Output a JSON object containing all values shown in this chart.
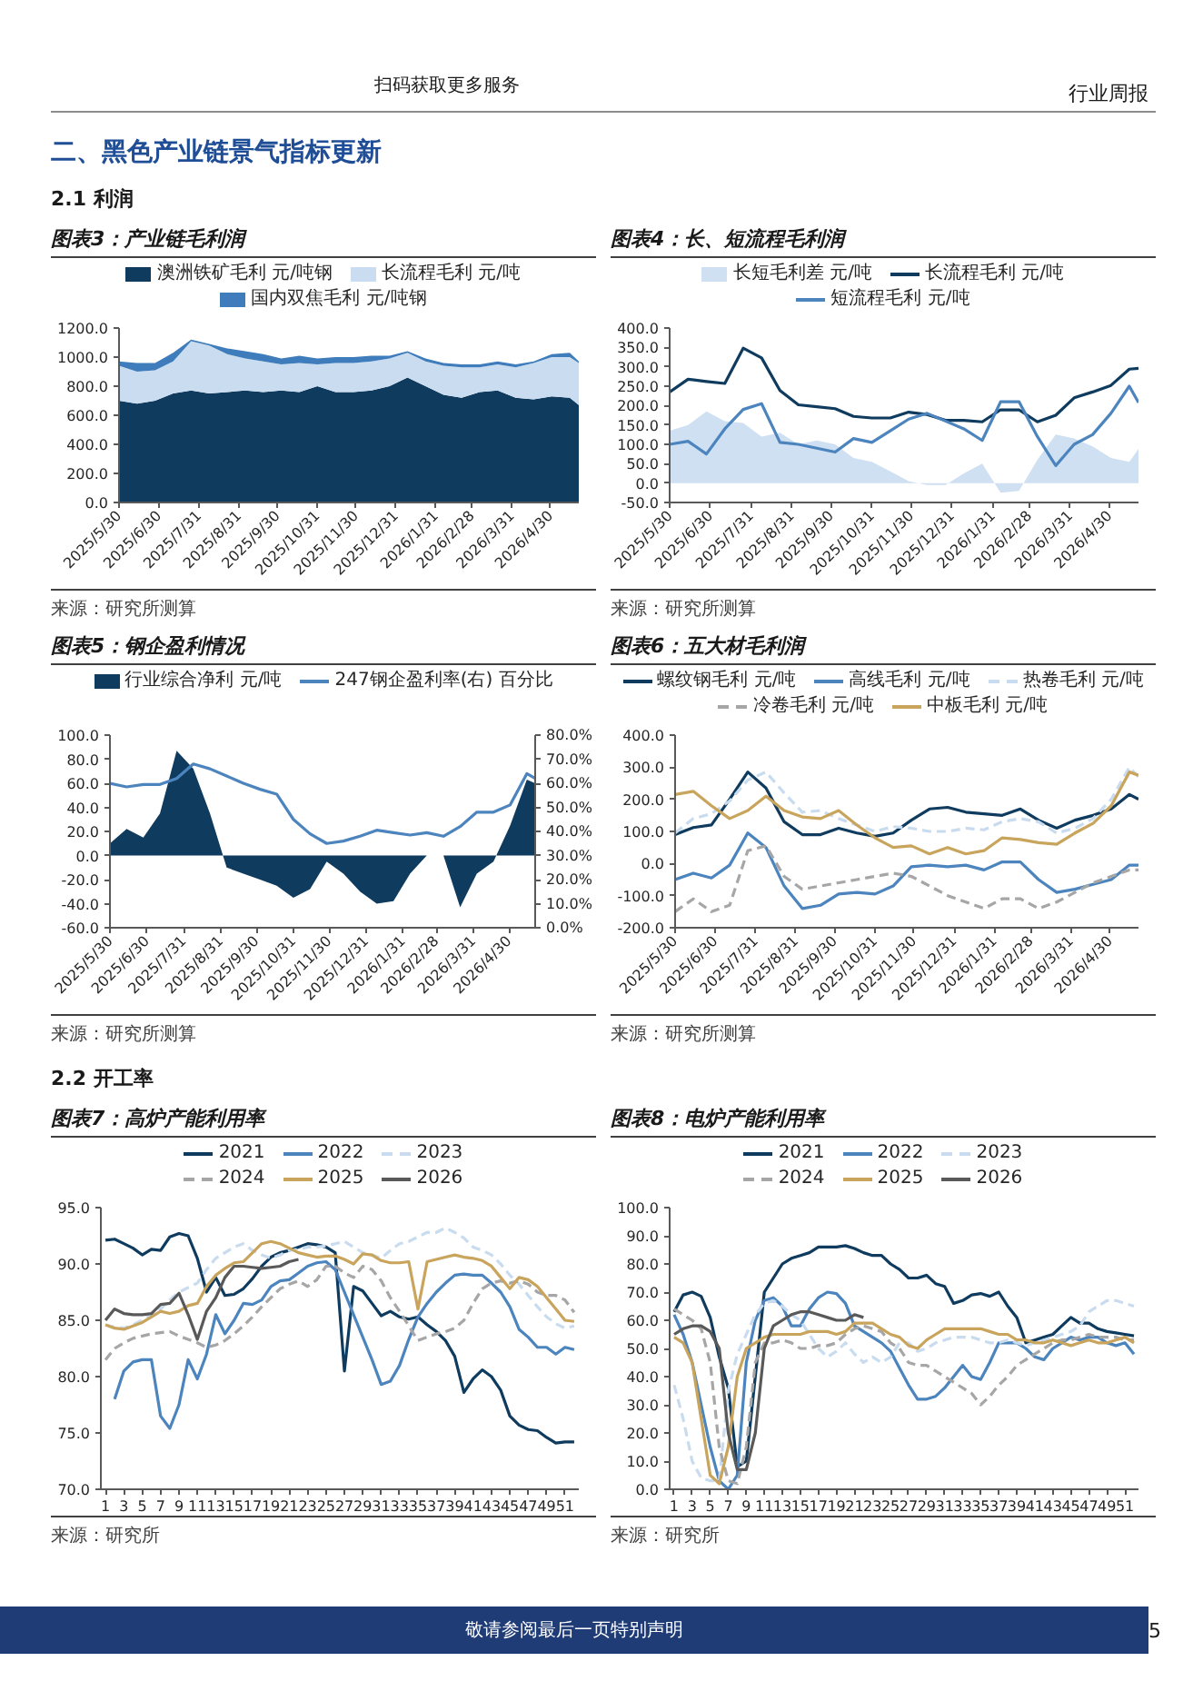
{
  "chart_data": [
    {
      "type": "area",
      "stacked": true,
      "title": "图表3：产业链毛利润",
      "annotations": [
        "来源：研究所测算",
        "扫码获取更多服务",
        "行业周报",
        "二、黑色产业链景气指标更新",
        "2.1 利润"
      ],
      "x": [
        "2025-05-30",
        "2025-06-13",
        "2025-06-27",
        "2025-07-11",
        "2025-07-25",
        "2025-08-08",
        "2025-08-22",
        "2025-09-05",
        "2025-09-19",
        "2025-10-03",
        "2025-10-17",
        "2025-10-31",
        "2025-11-14",
        "2025-11-28",
        "2025-12-12",
        "2025-12-26",
        "2026-01-09",
        "2026-01-23",
        "2026-02-06",
        "2026-02-20",
        "2026-03-06",
        "2026-03-20",
        "2026-04-03",
        "2026-04-17",
        "2026-05-01",
        "2026-05-15",
        "2026-05-22"
      ],
      "xlim": [
        "2025-05-30",
        "2026-05-22"
      ],
      "xticks": [
        {
          "value": "2025-05-30",
          "label": "2025/5/30"
        },
        {
          "value": "2025-06-30",
          "label": "2025/6/30"
        },
        {
          "value": "2025-07-31",
          "label": "2025/7/31"
        },
        {
          "value": "2025-08-31",
          "label": "2025/8/31"
        },
        {
          "value": "2025-09-30",
          "label": "2025/9/30"
        },
        {
          "value": "2025-10-31",
          "label": "2025/10/31"
        },
        {
          "value": "2025-11-30",
          "label": "2025/11/30"
        },
        {
          "value": "2025-12-31",
          "label": "2025/12/31"
        },
        {
          "value": "2026-01-31",
          "label": "2026/1/31"
        },
        {
          "value": "2026-02-28",
          "label": "2026/2/28"
        },
        {
          "value": "2026-03-31",
          "label": "2026/3/31"
        },
        {
          "value": "2026-04-30",
          "label": "2026/4/30"
        }
      ],
      "ylim": [
        0,
        1200
      ],
      "yticks": [
        {
          "value": 0,
          "label": "0.0"
        },
        {
          "value": 200,
          "label": "200.0"
        },
        {
          "value": 400,
          "label": "400.0"
        },
        {
          "value": 600,
          "label": "600.0"
        },
        {
          "value": 800,
          "label": "800.0"
        },
        {
          "value": 1000,
          "label": "1000.0"
        },
        {
          "value": 1200,
          "label": "1200.0"
        }
      ],
      "legend": "top",
      "series": [
        {
          "name": "澳洲铁矿毛利 元/吨钢",
          "color": "#0f3b5f",
          "values": [
            700,
            680,
            700,
            750,
            770,
            750,
            760,
            770,
            760,
            770,
            760,
            800,
            760,
            760,
            770,
            800,
            860,
            800,
            740,
            720,
            760,
            770,
            720,
            710,
            730,
            720,
            670
          ]
        },
        {
          "name": "长流程毛利 元/吨",
          "color": "#cadcef",
          "values": [
            240,
            220,
            210,
            220,
            340,
            330,
            260,
            220,
            210,
            180,
            200,
            150,
            200,
            200,
            200,
            190,
            170,
            170,
            200,
            210,
            170,
            180,
            210,
            250,
            270,
            280,
            290
          ]
        },
        {
          "name": "国内双焦毛利 元/吨钢",
          "color": "#3f7cbb",
          "values": [
            30,
            60,
            50,
            60,
            10,
            10,
            40,
            50,
            50,
            40,
            50,
            40,
            40,
            40,
            40,
            20,
            10,
            20,
            20,
            20,
            20,
            20,
            20,
            10,
            20,
            30,
            10
          ]
        }
      ]
    },
    {
      "type": "line",
      "title": "图表4：长、短流程毛利润",
      "annotations": [
        "来源：研究所测算"
      ],
      "x": [
        "2025-05-30",
        "2025-06-13",
        "2025-06-27",
        "2025-07-11",
        "2025-07-25",
        "2025-08-08",
        "2025-08-22",
        "2025-09-05",
        "2025-09-19",
        "2025-10-03",
        "2025-10-17",
        "2025-10-31",
        "2025-11-14",
        "2025-11-28",
        "2025-12-12",
        "2025-12-26",
        "2026-01-09",
        "2026-01-23",
        "2026-02-06",
        "2026-02-20",
        "2026-03-06",
        "2026-03-20",
        "2026-04-03",
        "2026-04-17",
        "2026-05-01",
        "2026-05-15",
        "2026-05-22"
      ],
      "xlim": [
        "2025-05-30",
        "2026-05-22"
      ],
      "xticks": [
        {
          "value": "2025-05-30",
          "label": "2025/5/30"
        },
        {
          "value": "2025-06-30",
          "label": "2025/6/30"
        },
        {
          "value": "2025-07-31",
          "label": "2025/7/31"
        },
        {
          "value": "2025-08-31",
          "label": "2025/8/31"
        },
        {
          "value": "2025-09-30",
          "label": "2025/9/30"
        },
        {
          "value": "2025-10-31",
          "label": "2025/10/31"
        },
        {
          "value": "2025-11-30",
          "label": "2025/11/30"
        },
        {
          "value": "2025-12-31",
          "label": "2025/12/31"
        },
        {
          "value": "2026-01-31",
          "label": "2026/1/31"
        },
        {
          "value": "2026-02-28",
          "label": "2026/2/28"
        },
        {
          "value": "2026-03-31",
          "label": "2026/3/31"
        },
        {
          "value": "2026-04-30",
          "label": "2026/4/30"
        }
      ],
      "ylim": [
        -50,
        400
      ],
      "yticks": [
        {
          "value": -50,
          "label": "-50.0"
        },
        {
          "value": 0,
          "label": "0.0"
        },
        {
          "value": 50,
          "label": "50.0"
        },
        {
          "value": 100,
          "label": "100.0"
        },
        {
          "value": 150,
          "label": "150.0"
        },
        {
          "value": 200,
          "label": "200.0"
        },
        {
          "value": 250,
          "label": "250.0"
        },
        {
          "value": 300,
          "label": "300.0"
        },
        {
          "value": 350,
          "label": "350.0"
        },
        {
          "value": 400,
          "label": "400.0"
        }
      ],
      "legend": "top",
      "series": [
        {
          "name": "长短毛利差 元/吨",
          "type": "area",
          "color": "#cfe0f2",
          "values": [
            135,
            150,
            185,
            160,
            155,
            120,
            130,
            100,
            110,
            100,
            65,
            55,
            30,
            5,
            -5,
            -5,
            25,
            50,
            -25,
            -20,
            60,
            125,
            115,
            95,
            65,
            55,
            88
          ]
        },
        {
          "name": "长流程毛利 元/吨",
          "color": "#0f3b5f",
          "values": [
            235,
            268,
            262,
            257,
            348,
            323,
            239,
            202,
            197,
            192,
            172,
            168,
            168,
            183,
            177,
            162,
            162,
            158,
            189,
            189,
            158,
            175,
            220,
            235,
            252,
            294,
            296
          ]
        },
        {
          "name": "短流程毛利 元/吨",
          "color": "#4c84be",
          "values": [
            100,
            108,
            75,
            140,
            190,
            205,
            105,
            100,
            90,
            80,
            115,
            105,
            135,
            165,
            180,
            160,
            140,
            110,
            210,
            210,
            120,
            45,
            100,
            125,
            180,
            250,
            208
          ]
        }
      ]
    },
    {
      "type": "area",
      "title": "图表5：钢企盈利情况",
      "annotations": [
        "来源：研究所测算"
      ],
      "x": [
        "2025-05-30",
        "2025-06-13",
        "2025-06-27",
        "2025-07-11",
        "2025-07-25",
        "2025-08-08",
        "2025-08-22",
        "2025-09-05",
        "2025-09-19",
        "2025-10-03",
        "2025-10-17",
        "2025-10-31",
        "2025-11-14",
        "2025-11-28",
        "2025-12-12",
        "2025-12-26",
        "2026-01-09",
        "2026-01-23",
        "2026-02-06",
        "2026-02-20",
        "2026-03-06",
        "2026-03-20",
        "2026-04-03",
        "2026-04-17",
        "2026-05-01",
        "2026-05-15",
        "2026-05-22"
      ],
      "xlim": [
        "2025-05-30",
        "2026-05-22"
      ],
      "xticks": [
        {
          "value": "2025-05-30",
          "label": "2025/5/30"
        },
        {
          "value": "2025-06-30",
          "label": "2025/6/30"
        },
        {
          "value": "2025-07-31",
          "label": "2025/7/31"
        },
        {
          "value": "2025-08-31",
          "label": "2025/8/31"
        },
        {
          "value": "2025-09-30",
          "label": "2025/9/30"
        },
        {
          "value": "2025-10-31",
          "label": "2025/10/31"
        },
        {
          "value": "2025-11-30",
          "label": "2025/11/30"
        },
        {
          "value": "2025-12-31",
          "label": "2025/12/31"
        },
        {
          "value": "2026-01-31",
          "label": "2026/1/31"
        },
        {
          "value": "2026-02-28",
          "label": "2026/2/28"
        },
        {
          "value": "2026-03-31",
          "label": "2026/3/31"
        },
        {
          "value": "2026-04-30",
          "label": "2026/4/30"
        }
      ],
      "ylim": [
        -60,
        100
      ],
      "yticks": [
        {
          "value": -60,
          "label": "-60.0"
        },
        {
          "value": -40,
          "label": "-40.0"
        },
        {
          "value": -20,
          "label": "-20.0"
        },
        {
          "value": 0,
          "label": "0.0"
        },
        {
          "value": 20,
          "label": "20.0"
        },
        {
          "value": 40,
          "label": "40.0"
        },
        {
          "value": 60,
          "label": "60.0"
        },
        {
          "value": 80,
          "label": "80.0"
        },
        {
          "value": 100,
          "label": "100.0"
        }
      ],
      "y2lim": [
        0,
        80
      ],
      "y2ticks": [
        {
          "value": 0,
          "label": "0.0%"
        },
        {
          "value": 10,
          "label": "10.0%"
        },
        {
          "value": 20,
          "label": "20.0%"
        },
        {
          "value": 30,
          "label": "30.0%"
        },
        {
          "value": 40,
          "label": "40.0%"
        },
        {
          "value": 50,
          "label": "50.0%"
        },
        {
          "value": 60,
          "label": "60.0%"
        },
        {
          "value": 70,
          "label": "70.0%"
        },
        {
          "value": 80,
          "label": "80.0%"
        }
      ],
      "legend": "top",
      "series": [
        {
          "name": "行业综合净利 元/吨",
          "color": "#0f3b5f",
          "values": [
            10,
            22,
            15,
            35,
            87,
            72,
            35,
            -10,
            -15,
            -20,
            -25,
            -35,
            -28,
            -5,
            -15,
            -30,
            -40,
            -38,
            -15,
            0,
            0,
            -43,
            -15,
            -5,
            25,
            63,
            60
          ]
        },
        {
          "name": "247钢企盈利率(右) 百分比",
          "type": "line",
          "axis": "y2",
          "color": "#4c84be",
          "values": [
            60,
            58.5,
            59.5,
            59.5,
            62,
            68,
            66,
            63,
            60,
            57.5,
            55.5,
            45,
            39,
            35,
            36,
            38,
            40.5,
            39.5,
            38.5,
            39.5,
            38,
            42,
            48,
            48,
            51,
            64,
            62
          ]
        }
      ]
    },
    {
      "type": "line",
      "title": "图表6：五大材毛利润",
      "annotations": [
        "来源：研究所测算"
      ],
      "x": [
        "2025-05-30",
        "2025-06-13",
        "2025-06-27",
        "2025-07-11",
        "2025-07-25",
        "2025-08-08",
        "2025-08-22",
        "2025-09-05",
        "2025-09-19",
        "2025-10-03",
        "2025-10-17",
        "2025-10-31",
        "2025-11-14",
        "2025-11-28",
        "2025-12-12",
        "2025-12-26",
        "2026-01-09",
        "2026-01-23",
        "2026-02-06",
        "2026-02-20",
        "2026-03-06",
        "2026-03-20",
        "2026-04-03",
        "2026-04-17",
        "2026-05-01",
        "2026-05-15",
        "2026-05-22"
      ],
      "xlim": [
        "2025-05-30",
        "2026-05-22"
      ],
      "xticks": [
        {
          "value": "2025-05-30",
          "label": "2025/5/30"
        },
        {
          "value": "2025-06-30",
          "label": "2025/6/30"
        },
        {
          "value": "2025-07-31",
          "label": "2025/7/31"
        },
        {
          "value": "2025-08-31",
          "label": "2025/8/31"
        },
        {
          "value": "2025-09-30",
          "label": "2025/9/30"
        },
        {
          "value": "2025-10-31",
          "label": "2025/10/31"
        },
        {
          "value": "2025-11-30",
          "label": "2025/11/30"
        },
        {
          "value": "2025-12-31",
          "label": "2025/12/31"
        },
        {
          "value": "2026-01-31",
          "label": "2026/1/31"
        },
        {
          "value": "2026-02-28",
          "label": "2026/2/28"
        },
        {
          "value": "2026-03-31",
          "label": "2026/3/31"
        },
        {
          "value": "2026-04-30",
          "label": "2026/4/30"
        }
      ],
      "ylim": [
        -200,
        400
      ],
      "yticks": [
        {
          "value": -200,
          "label": "-200.0"
        },
        {
          "value": -100,
          "label": "-100.0"
        },
        {
          "value": 0,
          "label": "0.0"
        },
        {
          "value": 100,
          "label": "100.0"
        },
        {
          "value": 200,
          "label": "200.0"
        },
        {
          "value": 300,
          "label": "300.0"
        },
        {
          "value": 400,
          "label": "400.0"
        }
      ],
      "legend": "top",
      "series": [
        {
          "name": "螺纹钢毛利 元/吨",
          "color": "#0f3b5f",
          "values": [
            90,
            112,
            120,
            200,
            285,
            235,
            130,
            90,
            90,
            110,
            95,
            85,
            95,
            135,
            170,
            175,
            160,
            155,
            150,
            170,
            135,
            110,
            135,
            150,
            170,
            215,
            200
          ]
        },
        {
          "name": "高线毛利 元/吨",
          "color": "#4c84be",
          "values": [
            -50,
            -30,
            -45,
            -5,
            95,
            50,
            -70,
            -140,
            -130,
            -95,
            -90,
            -95,
            -70,
            -10,
            -5,
            -10,
            -5,
            -20,
            5,
            5,
            -50,
            -90,
            -80,
            -65,
            -50,
            -5,
            -5
          ]
        },
        {
          "name": "热卷毛利 元/吨",
          "color": "#c9dcef",
          "line_style": "dashed",
          "values": [
            95,
            140,
            155,
            195,
            260,
            285,
            220,
            160,
            165,
            140,
            120,
            100,
            115,
            110,
            100,
            100,
            110,
            105,
            130,
            140,
            130,
            95,
            110,
            140,
            200,
            300,
            270
          ]
        },
        {
          "name": "冷卷毛利 元/吨",
          "color": "#a6a6a6",
          "line_style": "dashed",
          "values": [
            -150,
            -110,
            -150,
            -130,
            40,
            55,
            -40,
            -80,
            -70,
            -60,
            -50,
            -40,
            -30,
            -40,
            -70,
            -100,
            -120,
            -140,
            -110,
            -110,
            -140,
            -120,
            -90,
            -60,
            -40,
            -20,
            -20
          ]
        },
        {
          "name": "中板毛利 元/吨",
          "color": "#c8a45c",
          "values": [
            215,
            225,
            180,
            140,
            165,
            210,
            165,
            145,
            140,
            165,
            120,
            80,
            50,
            55,
            30,
            50,
            30,
            40,
            80,
            75,
            65,
            60,
            95,
            125,
            180,
            285,
            275
          ]
        }
      ]
    },
    {
      "type": "line",
      "title": "图表7：高炉产能利用率",
      "annotations": [
        "来源：研究所",
        "2.2 开工率"
      ],
      "x": [
        1,
        2,
        3,
        4,
        5,
        6,
        7,
        8,
        9,
        10,
        11,
        12,
        13,
        14,
        15,
        16,
        17,
        18,
        19,
        20,
        21,
        22,
        23,
        24,
        25,
        26,
        27,
        28,
        29,
        30,
        31,
        32,
        33,
        34,
        35,
        36,
        37,
        38,
        39,
        40,
        41,
        42,
        43,
        44,
        45,
        46,
        47,
        48,
        49,
        50,
        51,
        52
      ],
      "xlim": [
        0.5,
        52.5
      ],
      "xticks": [
        1,
        3,
        5,
        7,
        9,
        11,
        13,
        15,
        17,
        19,
        21,
        23,
        25,
        27,
        29,
        31,
        33,
        35,
        37,
        39,
        41,
        43,
        45,
        47,
        49,
        51
      ],
      "ylim": [
        70,
        95
      ],
      "yticks": [
        {
          "value": 70,
          "label": "70.0"
        },
        {
          "value": 75,
          "label": "75.0"
        },
        {
          "value": 80,
          "label": "80.0"
        },
        {
          "value": 85,
          "label": "85.0"
        },
        {
          "value": 90,
          "label": "90.0"
        },
        {
          "value": 95,
          "label": "95.0"
        }
      ],
      "legend": "top",
      "series": [
        {
          "name": "2021",
          "color": "#0f3b5f",
          "values": [
            92.1,
            92.2,
            91.8,
            91.4,
            90.8,
            91.3,
            91.2,
            92.4,
            92.7,
            92.5,
            90.5,
            87.5,
            88.8,
            87.2,
            87.3,
            87.8,
            88.7,
            89.8,
            90.6,
            91.0,
            91.2,
            91.5,
            91.8,
            91.7,
            91.5,
            91.0,
            80.5,
            88.0,
            87.6,
            86.5,
            85.4,
            85.8,
            85.3,
            85.1,
            85.3,
            84.6,
            84.0,
            83.2,
            81.8,
            78.6,
            79.8,
            80.6,
            80.0,
            78.8,
            76.5,
            75.7,
            75.3,
            75.2,
            74.6,
            74.1,
            74.2,
            74.2
          ]
        },
        {
          "name": "2022",
          "color": "#4c84be",
          "values": [
            null,
            78.0,
            80.5,
            81.3,
            81.5,
            81.5,
            76.5,
            75.4,
            77.5,
            81.5,
            79.8,
            82.0,
            85.5,
            83.8,
            85.0,
            86.5,
            86.4,
            86.8,
            88.0,
            88.5,
            88.6,
            89.2,
            89.8,
            90.1,
            90.2,
            89.5,
            87.5,
            85.5,
            83.5,
            81.5,
            79.3,
            79.6,
            81.0,
            83.3,
            85.3,
            86.5,
            87.5,
            88.3,
            89.0,
            89.1,
            89.0,
            89.0,
            88.3,
            87.5,
            86.2,
            84.2,
            83.5,
            82.6,
            82.6,
            82.0,
            82.6,
            82.4
          ]
        },
        {
          "name": "2023",
          "color": "#c9dcef",
          "line_style": "dashed",
          "values": [
            84.6,
            84.4,
            84.3,
            84.6,
            85.0,
            85.5,
            86.0,
            86.8,
            87.5,
            87.9,
            88.3,
            89.5,
            90.5,
            91.0,
            91.5,
            91.8,
            91.2,
            90.8,
            90.5,
            90.8,
            91.2,
            91.3,
            91.5,
            91.5,
            91.6,
            91.8,
            92.0,
            91.5,
            91.0,
            90.8,
            90.5,
            91.2,
            91.8,
            92.0,
            92.4,
            92.8,
            92.8,
            93.2,
            92.8,
            92.3,
            91.5,
            91.2,
            90.8,
            90.0,
            89.0,
            88.2,
            87.2,
            86.2,
            85.3,
            84.7,
            84.3,
            84.5
          ]
        },
        {
          "name": "2024",
          "color": "#a6a6a6",
          "line_style": "dashed",
          "values": [
            81.5,
            82.5,
            83.0,
            83.4,
            83.6,
            83.8,
            83.9,
            84.0,
            83.6,
            83.3,
            83.0,
            82.6,
            82.8,
            83.2,
            83.8,
            84.5,
            85.3,
            86.2,
            87.0,
            87.8,
            88.2,
            88.5,
            88.0,
            88.6,
            89.8,
            89.8,
            89.2,
            88.8,
            89.8,
            89.5,
            88.5,
            87.0,
            85.8,
            84.5,
            83.2,
            83.5,
            83.8,
            84.0,
            84.3,
            85.0,
            86.5,
            87.8,
            88.3,
            88.5,
            88.3,
            88.5,
            88.2,
            87.5,
            87.2,
            87.2,
            86.8,
            85.7
          ]
        },
        {
          "name": "2025",
          "color": "#c8a45c",
          "values": [
            84.6,
            84.3,
            84.2,
            84.5,
            84.8,
            85.3,
            85.8,
            85.6,
            85.8,
            86.3,
            86.5,
            88.0,
            89.0,
            89.6,
            90.1,
            90.2,
            91.0,
            91.8,
            92.0,
            91.8,
            91.4,
            91.0,
            90.8,
            90.6,
            90.7,
            90.7,
            90.4,
            90.0,
            90.9,
            90.8,
            90.3,
            90.1,
            90.1,
            90.2,
            86.0,
            90.2,
            90.4,
            90.6,
            90.8,
            90.6,
            90.5,
            90.3,
            89.8,
            88.8,
            87.8,
            88.8,
            88.6,
            88.0,
            87.0,
            86.0,
            85.0,
            84.9
          ]
        },
        {
          "name": "2026",
          "color": "#595959",
          "values": [
            85.0,
            86.0,
            85.6,
            85.5,
            85.5,
            85.6,
            86.4,
            86.5,
            87.4,
            85.5,
            83.3,
            85.8,
            87.0,
            88.8,
            89.8,
            89.8,
            89.7,
            89.6,
            89.7,
            89.8,
            90.2,
            90.4,
            null,
            null,
            null,
            null,
            null,
            null,
            null,
            null,
            null,
            null,
            null,
            null,
            null,
            null,
            null,
            null,
            null,
            null,
            null,
            null,
            null,
            null,
            null,
            null,
            null,
            null,
            null,
            null,
            null,
            null
          ]
        }
      ]
    },
    {
      "type": "line",
      "title": "图表8：电炉产能利用率",
      "annotations": [
        "来源：研究所",
        "敬请参阅最后一页特别声明",
        "5"
      ],
      "x": [
        1,
        2,
        3,
        4,
        5,
        6,
        7,
        8,
        9,
        10,
        11,
        12,
        13,
        14,
        15,
        16,
        17,
        18,
        19,
        20,
        21,
        22,
        23,
        24,
        25,
        26,
        27,
        28,
        29,
        30,
        31,
        32,
        33,
        34,
        35,
        36,
        37,
        38,
        39,
        40,
        41,
        42,
        43,
        44,
        45,
        46,
        47,
        48,
        49,
        50,
        51,
        52
      ],
      "xlim": [
        0.5,
        52.5
      ],
      "xticks": [
        1,
        3,
        5,
        7,
        9,
        11,
        13,
        15,
        17,
        19,
        21,
        23,
        25,
        27,
        29,
        31,
        33,
        35,
        37,
        39,
        41,
        43,
        45,
        47,
        49,
        51
      ],
      "ylim": [
        0,
        100
      ],
      "yticks": [
        {
          "value": 0,
          "label": "0.0"
        },
        {
          "value": 10,
          "label": "10.0"
        },
        {
          "value": 20,
          "label": "20.0"
        },
        {
          "value": 30,
          "label": "30.0"
        },
        {
          "value": 40,
          "label": "40.0"
        },
        {
          "value": 50,
          "label": "50.0"
        },
        {
          "value": 60,
          "label": "60.0"
        },
        {
          "value": 70,
          "label": "70.0"
        },
        {
          "value": 80,
          "label": "80.0"
        },
        {
          "value": 90,
          "label": "90.0"
        },
        {
          "value": 100,
          "label": "100.0"
        }
      ],
      "legend": "top",
      "series": [
        {
          "name": "2021",
          "color": "#0f3b5f",
          "values": [
            63,
            69,
            70,
            68.5,
            61,
            47,
            36,
            8,
            10,
            40,
            70,
            75,
            80,
            82,
            83,
            84,
            86,
            86,
            86,
            86.5,
            85.5,
            84,
            83,
            83,
            80,
            78,
            75,
            75,
            76,
            73,
            72,
            66,
            67,
            69,
            69.5,
            68.5,
            70,
            65,
            61,
            52,
            53,
            54,
            55,
            58,
            61,
            59,
            59,
            57,
            56,
            55.5,
            55,
            54.5
          ]
        },
        {
          "name": "2022",
          "color": "#4c84be",
          "values": [
            62,
            55,
            45,
            30,
            15,
            3,
            0,
            5,
            45,
            60,
            67,
            68,
            65,
            58,
            58,
            64,
            68,
            70,
            69.5,
            66,
            58,
            56,
            54,
            52,
            49,
            43,
            37,
            32,
            32,
            33,
            36,
            40,
            44,
            40,
            39,
            45,
            52,
            52,
            52,
            50,
            47,
            46,
            50,
            52,
            54,
            53,
            54,
            54,
            52,
            51,
            52,
            48
          ]
        },
        {
          "name": "2023",
          "color": "#c9dcef",
          "line_style": "dashed",
          "values": [
            37,
            25,
            10,
            4,
            3,
            3,
            35,
            48,
            55,
            62,
            66,
            67,
            65,
            62,
            60,
            55,
            50,
            47,
            49,
            52,
            48,
            45,
            47,
            45,
            47,
            52,
            52,
            49,
            50,
            52,
            53,
            54,
            54,
            54,
            53,
            52,
            52,
            53,
            52,
            51,
            52,
            53,
            54,
            55,
            56,
            58,
            63,
            65,
            67,
            67,
            66,
            65
          ]
        },
        {
          "name": "2024",
          "color": "#a6a6a6",
          "line_style": "dashed",
          "values": [
            64,
            62,
            60,
            57,
            45,
            15,
            3,
            2,
            15,
            45,
            52,
            52,
            53,
            52,
            50,
            50,
            51,
            51,
            52,
            55,
            57,
            58,
            57,
            56,
            52,
            50,
            45,
            44,
            44,
            42,
            40,
            38,
            36,
            34,
            30,
            33,
            37,
            40,
            44,
            46,
            48,
            50,
            52,
            53,
            53,
            54,
            55,
            54,
            54,
            54,
            53,
            53
          ]
        },
        {
          "name": "2025",
          "color": "#c8a45c",
          "values": [
            54,
            52,
            45,
            25,
            5,
            2,
            15,
            40,
            50,
            52,
            54,
            55,
            55,
            55,
            55,
            56,
            56,
            56,
            55,
            56,
            59,
            59,
            59,
            57,
            55,
            54,
            51,
            50,
            53,
            55,
            57,
            57,
            57,
            57,
            57,
            56,
            55,
            55,
            53,
            53,
            52,
            52,
            53,
            52,
            51,
            52,
            53,
            52,
            52,
            53,
            54,
            52
          ]
        },
        {
          "name": "2026",
          "color": "#595959",
          "values": [
            55,
            57,
            58,
            58,
            56,
            50,
            20,
            7,
            7,
            20,
            50,
            58,
            60,
            62,
            63,
            63,
            62,
            61,
            60,
            60,
            62,
            61,
            null,
            null,
            null,
            null,
            null,
            null,
            null,
            null,
            null,
            null,
            null,
            null,
            null,
            null,
            null,
            null,
            null,
            null,
            null,
            null,
            null,
            null,
            null,
            null,
            null,
            null,
            null,
            null,
            null,
            null
          ]
        }
      ]
    }
  ]
}
